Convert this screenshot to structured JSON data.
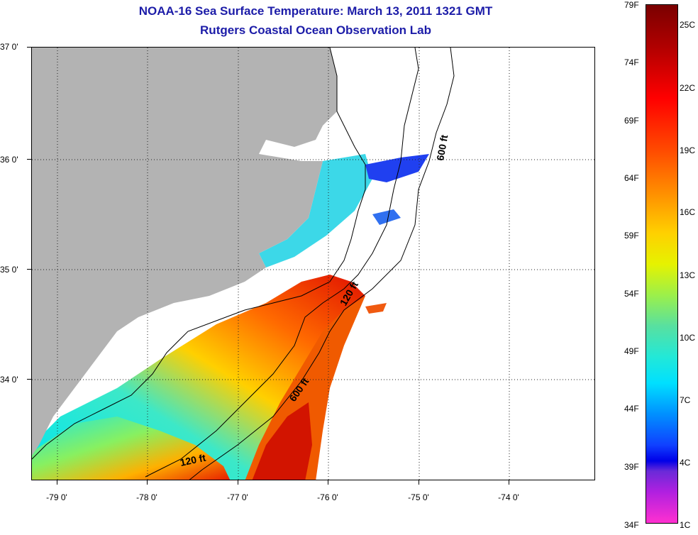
{
  "title": {
    "line1": "NOAA-16 Sea Surface Temperature:  March 13, 2011 1321 GMT",
    "line2": "Rutgers Coastal Ocean Observation Lab"
  },
  "axes": {
    "lat_labels": [
      "37 0'",
      "36 0'",
      "35 0'",
      "34 0'"
    ],
    "lon_labels": [
      "-79 0'",
      "-78 0'",
      "-77 0'",
      "-76 0'",
      "-75 0'",
      "-74 0'"
    ]
  },
  "contours": {
    "label_600_north": "600 ft",
    "label_120_north": "120 ft",
    "label_600_south": "600 ft",
    "label_120_south": "120 ft"
  },
  "colorbar": {
    "fahrenheit": [
      "79F",
      "74F",
      "69F",
      "64F",
      "59F",
      "54F",
      "49F",
      "44F",
      "39F",
      "34F"
    ],
    "celsius": [
      "25C",
      "22C",
      "19C",
      "16C",
      "13C",
      "10C",
      "7C",
      "4C",
      "1C"
    ]
  },
  "colors": {
    "land": "#b3b3b3",
    "title": "#1c1ca8",
    "no_data": "#ffffff"
  }
}
